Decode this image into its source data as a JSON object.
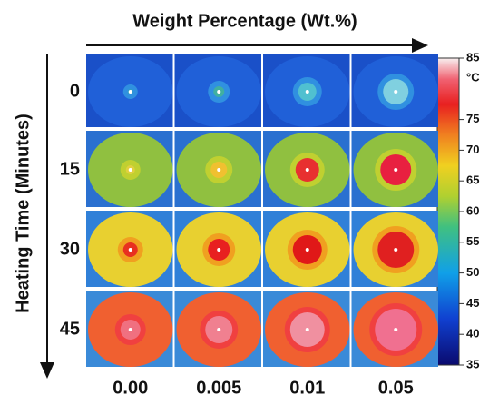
{
  "x_title": "Weight Percentage (Wt.%)",
  "y_title": "Heating Time (Minutes)",
  "columns": [
    "0.00",
    "0.005",
    "0.01",
    "0.05"
  ],
  "rows": [
    "0",
    "15",
    "30",
    "45"
  ],
  "colorbar": {
    "unit": "°C",
    "range": [
      35,
      85
    ],
    "ticks": [
      85,
      75,
      70,
      65,
      60,
      55,
      50,
      45,
      40,
      35
    ]
  }
}
